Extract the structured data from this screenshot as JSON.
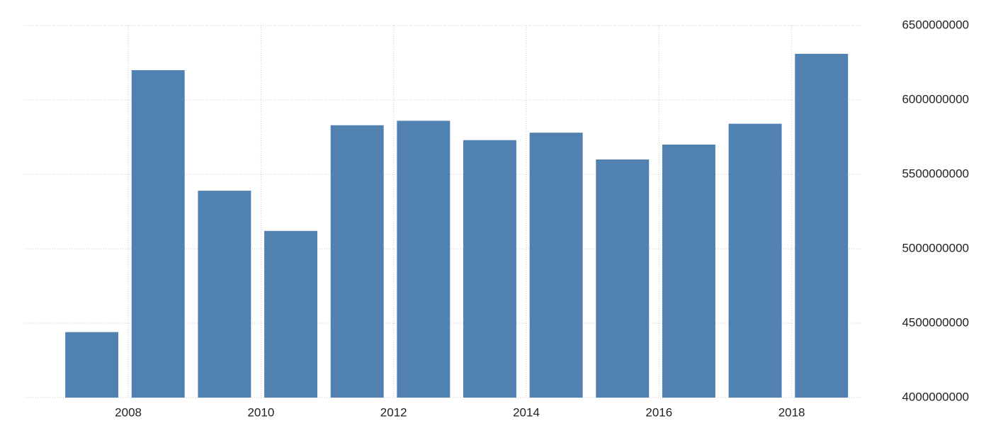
{
  "chart_data": {
    "type": "bar",
    "x": [
      2007,
      2008,
      2009,
      2010,
      2011,
      2012,
      2013,
      2014,
      2015,
      2016,
      2017,
      2018
    ],
    "values": [
      4440000000,
      6200000000,
      5390000000,
      5120000000,
      5830000000,
      5860000000,
      5730000000,
      5780000000,
      5600000000,
      5700000000,
      5840000000,
      6310000000
    ],
    "color": "#5181b0",
    "xlim": [
      2006.44,
      2019.04
    ],
    "xticks": [
      2008,
      2010,
      2012,
      2014,
      2016,
      2018
    ],
    "ylim": [
      4000000000,
      6500000000
    ],
    "yticks": [
      4000000000,
      4500000000,
      5000000000,
      5500000000,
      6000000000,
      6500000000
    ],
    "grid": true
  }
}
